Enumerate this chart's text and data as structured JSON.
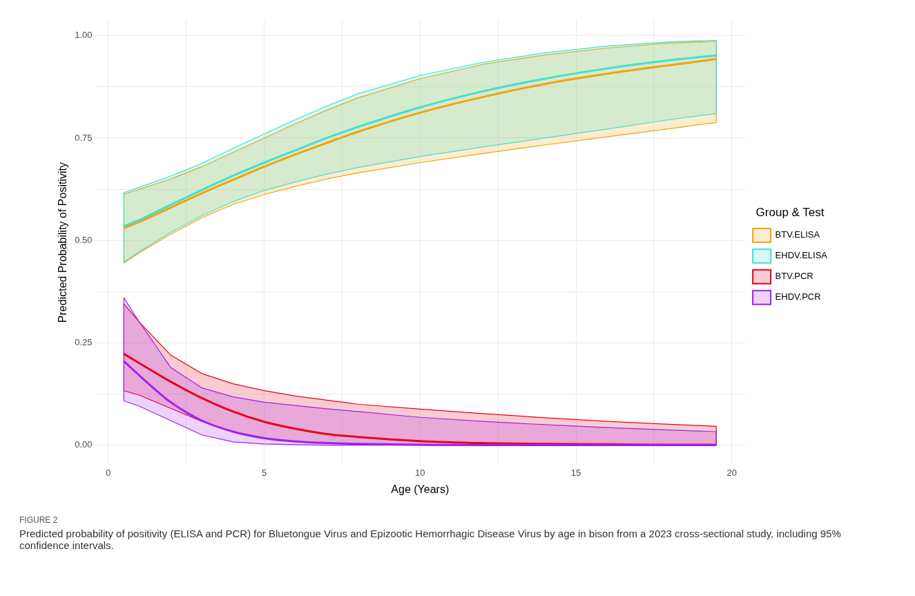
{
  "chart_data": {
    "type": "line",
    "xlabel": "Age (Years)",
    "ylabel": "Predicted Probability of Positivity",
    "legend_title": "Group & Test",
    "legend": "right",
    "grid": true,
    "marker": "none",
    "x": [
      0.5,
      1,
      2,
      3,
      4,
      5,
      6,
      7,
      8,
      10,
      12,
      14,
      16,
      18,
      19.5
    ],
    "xlim": [
      -0.45,
      20.45
    ],
    "xticks": [
      0,
      {
        "value": 2.5,
        "label": null
      },
      5,
      {
        "value": 7.5,
        "label": null
      },
      10,
      {
        "value": 12.5,
        "label": null
      },
      15,
      {
        "value": 17.5,
        "label": null
      },
      20
    ],
    "ylim": [
      -0.05,
      1.04
    ],
    "yticks": [
      {
        "value": 0,
        "label": "0.00"
      },
      {
        "value": 0.125,
        "label": null
      },
      {
        "value": 0.25,
        "label": "0.25"
      },
      {
        "value": 0.375,
        "label": null
      },
      {
        "value": 0.5,
        "label": "0.50"
      },
      {
        "value": 0.625,
        "label": null
      },
      {
        "value": 0.75,
        "label": "0.75"
      },
      {
        "value": 0.875,
        "label": null
      },
      {
        "value": 1,
        "label": "1.00"
      }
    ],
    "series": [
      {
        "name": "BTV.ELISA",
        "color": "#f0a30a",
        "values": [
          0.53,
          0.545,
          0.58,
          0.615,
          0.648,
          0.68,
          0.71,
          0.738,
          0.765,
          0.812,
          0.85,
          0.882,
          0.907,
          0.928,
          0.943
        ],
        "lower": [
          0.445,
          0.47,
          0.515,
          0.555,
          0.588,
          0.612,
          0.632,
          0.65,
          0.665,
          0.69,
          0.712,
          0.733,
          0.753,
          0.773,
          0.788
        ],
        "upper": [
          0.613,
          0.625,
          0.65,
          0.68,
          0.715,
          0.75,
          0.785,
          0.818,
          0.848,
          0.895,
          0.93,
          0.953,
          0.97,
          0.982,
          0.986
        ]
      },
      {
        "name": "EHDV.ELISA",
        "color": "#40e0d0",
        "values": [
          0.535,
          0.55,
          0.587,
          0.623,
          0.658,
          0.69,
          0.72,
          0.75,
          0.777,
          0.825,
          0.864,
          0.895,
          0.92,
          0.94,
          0.952
        ],
        "lower": [
          0.447,
          0.473,
          0.52,
          0.56,
          0.595,
          0.622,
          0.643,
          0.662,
          0.678,
          0.705,
          0.728,
          0.75,
          0.772,
          0.795,
          0.81
        ],
        "upper": [
          0.617,
          0.63,
          0.657,
          0.688,
          0.725,
          0.76,
          0.795,
          0.828,
          0.858,
          0.903,
          0.935,
          0.958,
          0.975,
          0.985,
          0.989
        ]
      },
      {
        "name": "BTV.PCR",
        "color": "#e8001c",
        "values": [
          0.223,
          0.2,
          0.155,
          0.115,
          0.082,
          0.057,
          0.04,
          0.027,
          0.02,
          0.01,
          0.005,
          0.003,
          0.002,
          0.001,
          0.001
        ],
        "lower": [
          0.133,
          0.122,
          0.09,
          0.058,
          0.033,
          0.018,
          0.009,
          0.005,
          0.003,
          0.001,
          0,
          0,
          0,
          0,
          0
        ],
        "upper": [
          0.345,
          0.3,
          0.22,
          0.175,
          0.15,
          0.133,
          0.12,
          0.11,
          0.1,
          0.088,
          0.077,
          0.067,
          0.058,
          0.051,
          0.046
        ]
      },
      {
        "name": "EHDV.PCR",
        "color": "#a020f0",
        "values": [
          0.205,
          0.17,
          0.105,
          0.06,
          0.033,
          0.017,
          0.009,
          0.005,
          0.003,
          0.001,
          0,
          0,
          0,
          0,
          0
        ],
        "lower": [
          0.108,
          0.095,
          0.06,
          0.025,
          0.008,
          0.003,
          0.001,
          0,
          0,
          0,
          0,
          0,
          0,
          0,
          0
        ],
        "upper": [
          0.36,
          0.3,
          0.19,
          0.14,
          0.118,
          0.105,
          0.097,
          0.089,
          0.082,
          0.068,
          0.058,
          0.05,
          0.043,
          0.037,
          0.033
        ]
      }
    ],
    "annotations": [
      "FIGURE 2",
      "Predicted probability of positivity (ELISA and PCR) for Bluetongue Virus and Epizootic Hemorrhagic Disease Virus by age in bison from a 2023 cross-sectional study, including 95% confidence intervals."
    ]
  }
}
